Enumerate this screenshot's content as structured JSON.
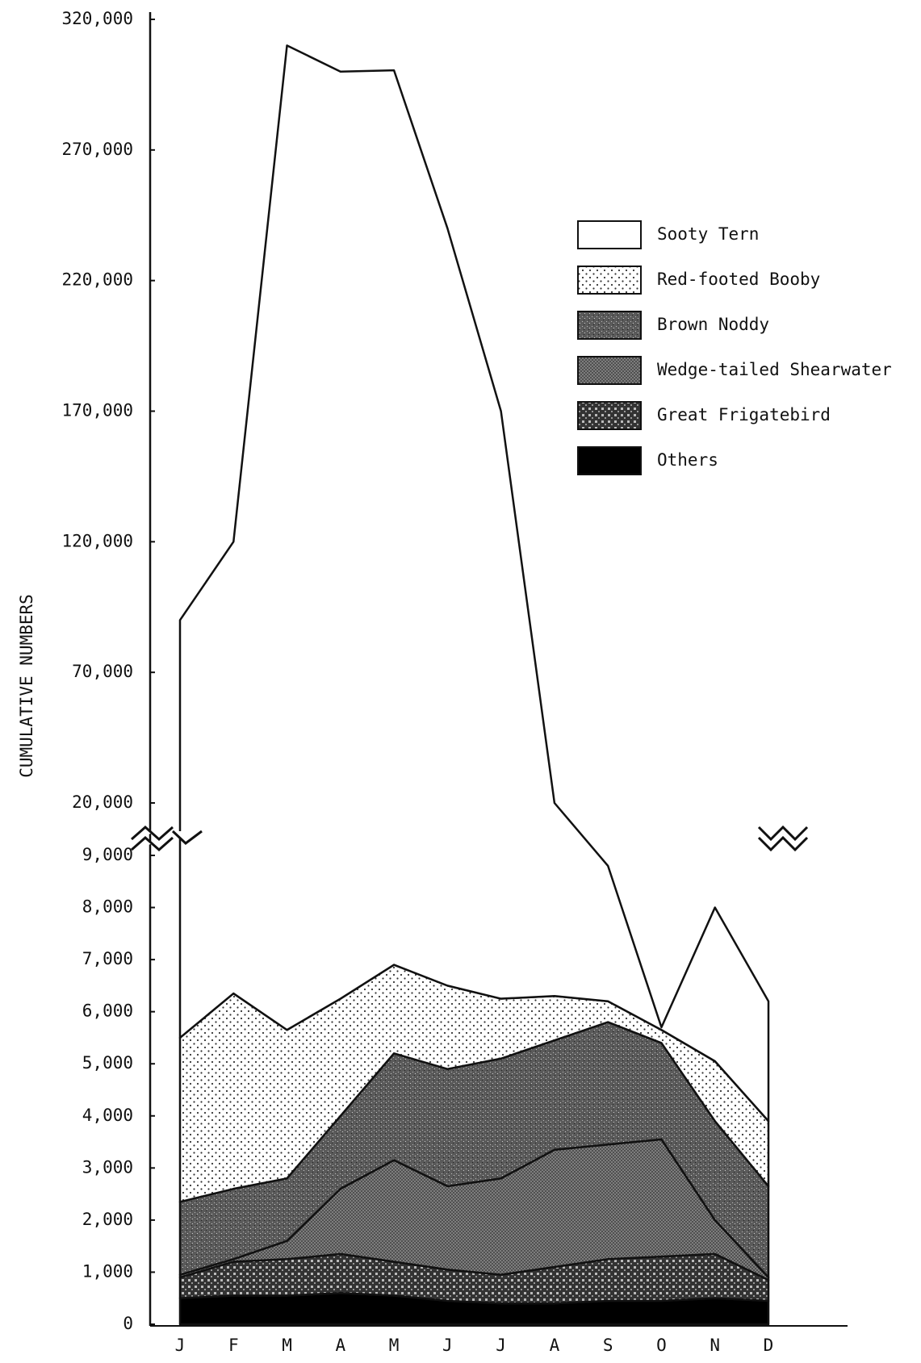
{
  "chart_data": {
    "type": "stacked_area",
    "y_label": "CUMULATIVE NUMBERS",
    "categories": [
      "J",
      "F",
      "M",
      "A",
      "M",
      "J",
      "J",
      "A",
      "S",
      "O",
      "N",
      "D"
    ],
    "series": [
      {
        "name": "Others",
        "color": "#000000",
        "values": [
          500,
          550,
          550,
          600,
          550,
          450,
          400,
          400,
          450,
          450,
          500,
          450
        ]
      },
      {
        "name": "Great Frigatebird",
        "color": "#333333",
        "values": [
          400,
          650,
          700,
          750,
          650,
          600,
          550,
          700,
          800,
          850,
          850,
          400
        ]
      },
      {
        "name": "Wedge-tailed Shearwater",
        "color": "#8a8a8a",
        "values": [
          50,
          50,
          350,
          1250,
          1950,
          1600,
          1850,
          2250,
          2200,
          2250,
          650,
          50
        ]
      },
      {
        "name": "Brown Noddy",
        "color": "#5a5a5a",
        "values": [
          1400,
          1350,
          1200,
          1400,
          2050,
          2250,
          2300,
          2100,
          2350,
          1850,
          1900,
          1750
        ]
      },
      {
        "name": "Red-footed Booby",
        "color": "#ffffff",
        "values": [
          3150,
          3750,
          2850,
          2250,
          1700,
          1600,
          1150,
          850,
          400,
          250,
          1150,
          1250
        ]
      },
      {
        "name": "Sooty Tern",
        "color": "#ffffff",
        "values": [
          84500,
          113650,
          304350,
          293750,
          293600,
          233500,
          163750,
          13700,
          2600,
          50,
          2950,
          2300
        ]
      }
    ],
    "ylim": [
      0,
      320000
    ],
    "ybreak": [
      9000,
      20000
    ],
    "yticks": [
      0,
      {
        "value": 1000,
        "label": "1,000"
      },
      {
        "value": 2000,
        "label": "2,000"
      },
      {
        "value": 3000,
        "label": "3,000"
      },
      {
        "value": 4000,
        "label": "4,000"
      },
      {
        "value": 5000,
        "label": "5,000"
      },
      {
        "value": 6000,
        "label": "6,000"
      },
      {
        "value": 7000,
        "label": "7,000"
      },
      {
        "value": 8000,
        "label": "8,000"
      },
      {
        "value": 9000,
        "label": "9,000"
      },
      {
        "value": 20000,
        "label": "20,000"
      },
      {
        "value": 70000,
        "label": "70,000"
      },
      {
        "value": 120000,
        "label": "120,000"
      },
      {
        "value": 170000,
        "label": "170,000"
      },
      {
        "value": 220000,
        "label": "220,000"
      },
      {
        "value": 270000,
        "label": "270,000"
      },
      {
        "value": 320000,
        "label": "320,000"
      }
    ]
  }
}
